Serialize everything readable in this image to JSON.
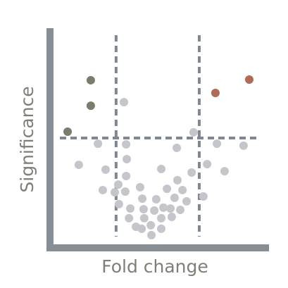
{
  "chart_data": {
    "type": "scatter",
    "xlabel": "Fold change",
    "ylabel": "Significance",
    "xlim": [
      0,
      100
    ],
    "ylim": [
      0,
      100
    ],
    "thresholds": {
      "x": [
        30.6,
        68.7
      ],
      "y": 50
    },
    "series": [
      {
        "color": "#c4c6cb",
        "x": [
          34.2,
          66.1,
          22.3,
          35.2,
          58.4,
          76.8,
          89.0,
          13.5,
          35.5,
          25.8,
          72.3,
          80.3,
          51.3,
          35.2,
          65.2,
          31.6,
          58.7,
          24.5,
          30.0,
          34.8,
          41.6,
          53.9,
          61.0,
          49.0,
          57.4,
          70.6,
          42.6,
          62.9,
          31.9,
          37.1,
          43.2,
          52.3,
          55.5,
          60.0,
          48.1,
          36.5,
          43.5,
          51.3,
          56.1,
          39.7,
          46.5,
          51.3,
          42.3,
          46.8
        ],
        "values": [
          66.3,
          52.6,
          47.4,
          47.1,
          45.5,
          47.4,
          46.5,
          37.8,
          40.4,
          35.6,
          38.1,
          34.9,
          35.9,
          32.7,
          34.3,
          28.8,
          30.8,
          26.3,
          25.3,
          25.6,
          27.6,
          26.9,
          26.3,
          22.1,
          22.8,
          23.4,
          22.4,
          21.2,
          19.9,
          17.9,
          17.6,
          18.3,
          17.9,
          17.3,
          17.0,
          13.5,
          13.5,
          13.5,
          14.1,
          9.6,
          10.3,
          8.7,
          8.7,
          5.8
        ]
      },
      {
        "color": "#7b7d6c",
        "x": [
          19.0,
          19.0,
          8.4
        ],
        "values": [
          76.3,
          64.7,
          52.9
        ]
      },
      {
        "color": "#b06a56",
        "x": [
          76.1,
          91.6
        ],
        "values": [
          70.5,
          76.6
        ]
      }
    ]
  }
}
